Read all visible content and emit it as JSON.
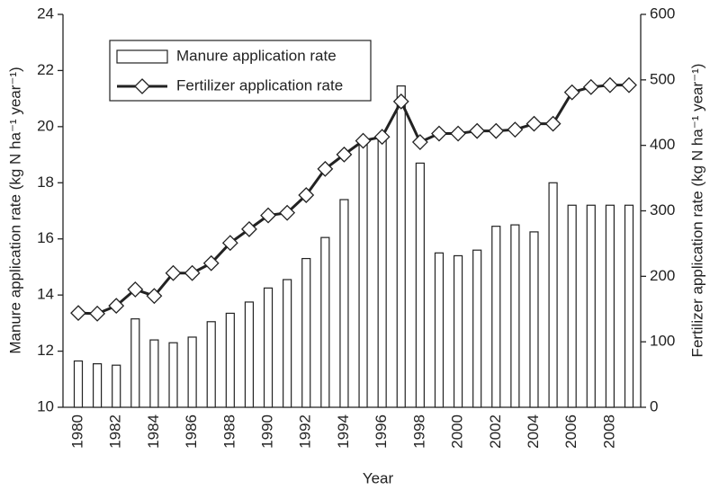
{
  "chart_data": {
    "type": "bar-line",
    "x_label": "Year",
    "y_label": "Manure application rate (kg N ha⁻¹ year⁻¹)",
    "y2_label": "Fertilizer application rate (kg N ha⁻¹ year⁻¹)",
    "categories": [
      "1980",
      null,
      "1982",
      null,
      "1984",
      null,
      "1986",
      null,
      "1988",
      null,
      "1990",
      null,
      "1992",
      null,
      "1994",
      null,
      "1996",
      null,
      "1998",
      null,
      "2000",
      null,
      "2002",
      null,
      "2004",
      null,
      "2006",
      null,
      "2008",
      null
    ],
    "series": [
      {
        "name": "Manure application rate",
        "kind": "bar",
        "color": "#ffffff",
        "values": [
          11.65,
          11.55,
          11.5,
          13.15,
          12.4,
          12.3,
          12.5,
          13.05,
          13.35,
          13.75,
          14.25,
          14.55,
          15.3,
          16.05,
          17.4,
          19.5,
          19.7,
          21.45,
          18.7,
          15.5,
          15.4,
          15.6,
          16.45,
          16.5,
          16.25,
          18.0,
          17.2,
          17.2,
          17.2,
          17.2
        ]
      },
      {
        "name": "Fertilizer application rate",
        "kind": "line",
        "axis": "y2",
        "color": "#222222",
        "values": [
          144,
          143,
          155,
          180,
          170,
          205,
          205,
          220,
          251,
          272,
          293,
          297,
          324,
          364,
          386,
          407,
          413,
          467,
          405,
          418,
          418,
          422,
          422,
          424,
          433,
          433,
          481,
          489,
          492,
          492
        ]
      }
    ],
    "ylim": [
      10,
      24
    ],
    "yticks": [
      10,
      12,
      14,
      16,
      18,
      20,
      22,
      24
    ],
    "y2lim": [
      0,
      600
    ],
    "y2ticks": [
      0,
      100,
      200,
      300,
      400,
      500,
      600
    ],
    "legend": "upper left"
  }
}
